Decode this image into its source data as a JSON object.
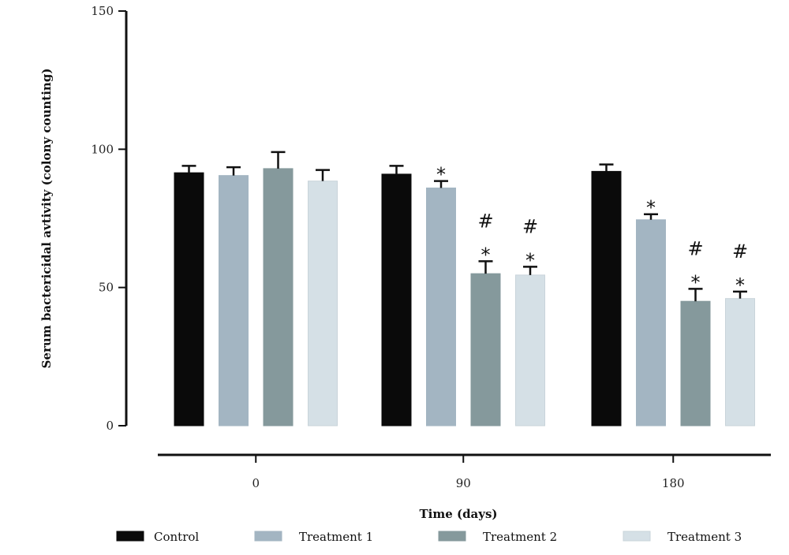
{
  "chart_data": {
    "type": "bar",
    "title": "",
    "xlabel": "Time (days)",
    "ylabel": "Serum bactericidal avtivity (colony counting)",
    "ylim": [
      0,
      150
    ],
    "yticks": [
      "0",
      "50",
      "100",
      "150"
    ],
    "categories": [
      "0",
      "90",
      "180"
    ],
    "legend_position": "bottom",
    "series": [
      {
        "name": "Control",
        "color": "#0a0a0a",
        "values": [
          91.5,
          91,
          92
        ],
        "errors": [
          2.5,
          3,
          2.5
        ],
        "annotations": [
          "",
          "",
          ""
        ]
      },
      {
        "name": "Treatment 1",
        "color": "#a3b5c2",
        "values": [
          90.5,
          86,
          74.5
        ],
        "errors": [
          3,
          2.5,
          2
        ],
        "annotations": [
          "",
          "*",
          "*"
        ]
      },
      {
        "name": "Treatment 2",
        "color": "#85999c",
        "values": [
          93,
          55,
          45
        ],
        "errors": [
          6,
          4.5,
          4.5
        ],
        "annotations": [
          "",
          "#\n*",
          "#\n*"
        ]
      },
      {
        "name": "Treatment 3",
        "color": "#d5e0e6",
        "values": [
          88.5,
          54.5,
          46
        ],
        "errors": [
          4,
          3,
          2.5
        ],
        "annotations": [
          "",
          "#\n*",
          "#\n*"
        ]
      }
    ]
  }
}
